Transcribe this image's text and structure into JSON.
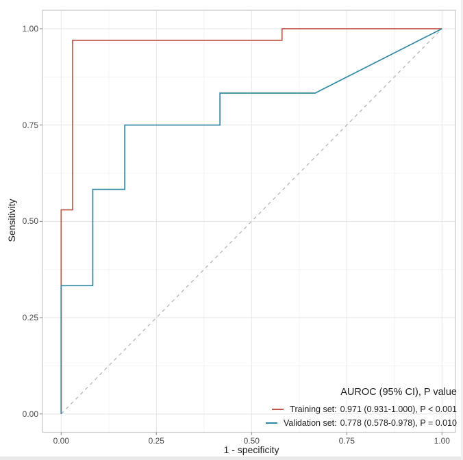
{
  "chart_data": {
    "type": "line",
    "subtype": "roc-curve",
    "title": "",
    "xlabel": "1 - specificity",
    "ylabel": "Sensitivity",
    "xlim": [
      0,
      1
    ],
    "ylim": [
      0,
      1
    ],
    "x_ticks": [
      "0.00",
      "0.25",
      "0.50",
      "0.75",
      "1.00"
    ],
    "y_ticks": [
      "0.00",
      "0.25",
      "0.50",
      "0.75",
      "1.00"
    ],
    "grid": "major and minor gridlines, white panel, light gray panel border",
    "legend_position": "inside bottom-right",
    "series": [
      {
        "name": "Training set",
        "color": "#c2574c",
        "auroc": "0.971 (0.931-1.000), P < 0.001",
        "points": [
          [
            0,
            0
          ],
          [
            0,
            0.53
          ],
          [
            0.03,
            0.53
          ],
          [
            0.03,
            0.97
          ],
          [
            0.58,
            0.97
          ],
          [
            0.58,
            1
          ],
          [
            1,
            1
          ]
        ]
      },
      {
        "name": "Validation set",
        "color": "#3188a4",
        "auroc": "0.778 (0.578-0.978), P = 0.010",
        "points": [
          [
            0,
            0
          ],
          [
            0,
            0.333
          ],
          [
            0.083,
            0.333
          ],
          [
            0.083,
            0.583
          ],
          [
            0.167,
            0.583
          ],
          [
            0.167,
            0.75
          ],
          [
            0.417,
            0.75
          ],
          [
            0.417,
            0.833
          ],
          [
            0.667,
            0.833
          ],
          [
            1,
            1
          ]
        ]
      }
    ],
    "reference_line": {
      "points": [
        [
          0,
          0
        ],
        [
          1,
          1
        ]
      ],
      "style": "dashed",
      "color": "#b6b6b6"
    }
  },
  "legend": {
    "title": "AUROC (95% CI), P value",
    "items": [
      {
        "label": "Training set:",
        "value": "0.971 (0.931-1.000), P < 0.001",
        "color": "#c2574c"
      },
      {
        "label": "Validation set:",
        "value": "0.778 (0.578-0.978), P = 0.010",
        "color": "#3188a4"
      }
    ]
  },
  "colors": {
    "panel_background": "#ffffff",
    "panel_border": "#c9c9c9",
    "grid_major": "#e6e6e6",
    "grid_minor": "#f3f3f3",
    "tick_mark": "#8a8a8a",
    "tick_label": "#4a4a4a",
    "axis_title": "#1c1c1c"
  }
}
